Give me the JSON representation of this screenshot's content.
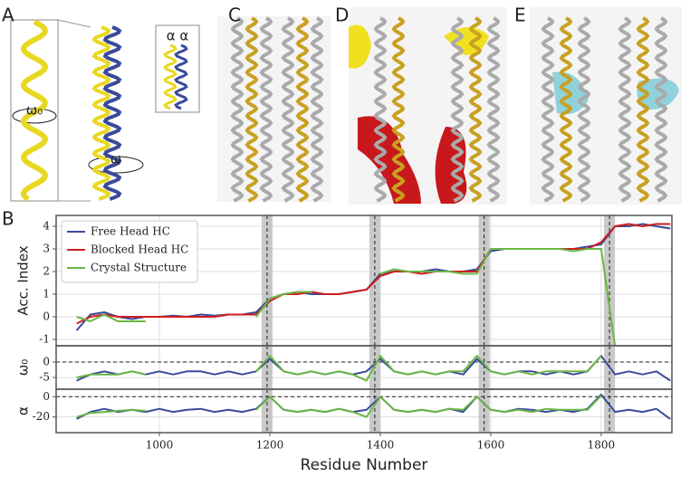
{
  "figure_labels": [
    "A",
    "C",
    "D",
    "E",
    "B"
  ],
  "panel_a_labels": [
    "ω₀",
    "ω",
    "α α"
  ],
  "chart_data": [
    {
      "type": "line",
      "ylabel": "Acc. Index",
      "legend": "upper left",
      "grid": true,
      "xlim": [
        813,
        1928
      ],
      "ylim": [
        -1.28,
        4.48
      ],
      "yticks": [
        -1,
        0,
        1,
        2,
        3,
        4
      ],
      "vlines": [
        1195,
        1390,
        1588,
        1815
      ],
      "x": [
        850,
        875,
        900,
        925,
        950,
        975,
        1000,
        1025,
        1050,
        1075,
        1100,
        1125,
        1150,
        1175,
        1200,
        1225,
        1250,
        1275,
        1300,
        1325,
        1350,
        1375,
        1400,
        1425,
        1450,
        1475,
        1500,
        1525,
        1550,
        1575,
        1600,
        1625,
        1650,
        1675,
        1700,
        1725,
        1750,
        1775,
        1800,
        1825,
        1850,
        1875,
        1900,
        1925
      ],
      "series": [
        {
          "name": "Free Head HC",
          "color": "#3a4a9a",
          "values": [
            -0.6,
            0.1,
            0.2,
            0.0,
            -0.1,
            0.0,
            0.0,
            0.05,
            0.0,
            0.1,
            0.05,
            0.1,
            0.1,
            0.2,
            0.8,
            1.0,
            1.1,
            1.0,
            1.0,
            1.0,
            1.1,
            1.2,
            1.9,
            2.0,
            2.0,
            2.0,
            2.1,
            2.0,
            2.0,
            2.1,
            2.9,
            3.0,
            3.0,
            3.0,
            3.0,
            3.0,
            3.0,
            3.1,
            3.2,
            4.0,
            4.0,
            4.1,
            4.0,
            3.9
          ]
        },
        {
          "name": "Blocked Head HC",
          "color": "#d01c1f",
          "values": [
            -0.3,
            0.0,
            0.1,
            0.0,
            0.0,
            0.0,
            0.0,
            0.0,
            0.0,
            0.0,
            0.0,
            0.1,
            0.1,
            0.1,
            0.7,
            1.0,
            1.0,
            1.1,
            1.0,
            1.0,
            1.1,
            1.2,
            1.8,
            2.0,
            2.0,
            1.9,
            2.0,
            2.0,
            2.0,
            2.0,
            3.0,
            3.0,
            3.0,
            3.0,
            3.0,
            3.0,
            3.0,
            3.0,
            3.3,
            4.0,
            4.1,
            4.0,
            4.1,
            4.1
          ]
        },
        {
          "name": "Crystal Structure",
          "color": "#6ab645",
          "values": [
            0.0,
            -0.2,
            0.1,
            -0.2,
            -0.2,
            -0.2,
            null,
            null,
            null,
            null,
            null,
            null,
            null,
            0.0,
            0.8,
            1.0,
            1.1,
            1.1,
            null,
            null,
            null,
            null,
            1.9,
            2.1,
            2.0,
            2.0,
            2.0,
            2.0,
            1.9,
            1.9,
            3.0,
            3.0,
            3.0,
            3.0,
            3.0,
            3.0,
            2.9,
            3.0,
            3.0,
            -1.3,
            null,
            null,
            null,
            null
          ]
        }
      ]
    },
    {
      "type": "line",
      "ylabel": "ω₀",
      "grid": true,
      "hline": 0,
      "xlim": [
        813,
        1928
      ],
      "ylim": [
        -8.8,
        5.3
      ],
      "yticks": [
        0,
        -5
      ],
      "x": [
        850,
        875,
        900,
        925,
        950,
        975,
        1000,
        1025,
        1050,
        1075,
        1100,
        1125,
        1150,
        1175,
        1200,
        1225,
        1250,
        1275,
        1300,
        1325,
        1350,
        1375,
        1400,
        1425,
        1450,
        1475,
        1500,
        1525,
        1550,
        1575,
        1600,
        1625,
        1650,
        1675,
        1700,
        1725,
        1750,
        1775,
        1800,
        1825,
        1850,
        1875,
        1900,
        1925
      ],
      "series": [
        {
          "color": "#3a4a9a",
          "values": [
            -6,
            -4,
            -3,
            -4,
            -3,
            -4,
            -3,
            -4,
            -3,
            -3,
            -4,
            -3,
            -4,
            -3,
            1,
            -3,
            -4,
            -3,
            -4,
            -3,
            -4,
            -3,
            1,
            -3,
            -4,
            -3,
            -4,
            -3,
            -4,
            1,
            -3,
            -4,
            -3,
            -3,
            -4,
            -3,
            -4,
            -3,
            2,
            -4,
            -3,
            -4,
            -3,
            -6
          ]
        },
        {
          "color": "#6ab645",
          "values": [
            -5,
            -4,
            -4,
            -4,
            -3,
            -4,
            null,
            null,
            null,
            null,
            null,
            null,
            null,
            -3,
            2,
            -3,
            -4,
            -3,
            -4,
            -3,
            -4,
            -6,
            2,
            -3,
            -4,
            -3,
            -4,
            -3,
            -3,
            2,
            -3,
            -4,
            -3,
            -4,
            -3,
            -3,
            -3,
            -3,
            2,
            null,
            null,
            null,
            null,
            null
          ]
        }
      ]
    },
    {
      "type": "line",
      "ylabel": "α",
      "xlabel": "Residue Number",
      "grid": true,
      "hline": 0,
      "xlim": [
        813,
        1928
      ],
      "ylim": [
        -35.5,
        7.4
      ],
      "yticks": [
        0,
        -20
      ],
      "xticks": [
        1000,
        1200,
        1400,
        1600,
        1800
      ],
      "x": [
        850,
        875,
        900,
        925,
        950,
        975,
        1000,
        1025,
        1050,
        1075,
        1100,
        1125,
        1150,
        1175,
        1200,
        1225,
        1250,
        1275,
        1300,
        1325,
        1350,
        1375,
        1400,
        1425,
        1450,
        1475,
        1500,
        1525,
        1550,
        1575,
        1600,
        1625,
        1650,
        1675,
        1700,
        1725,
        1750,
        1775,
        1800,
        1825,
        1850,
        1875,
        1900,
        1925
      ],
      "series": [
        {
          "color": "#3a4a9a",
          "values": [
            -22,
            -15,
            -12,
            -15,
            -13,
            -15,
            -12,
            -15,
            -13,
            -12,
            -15,
            -13,
            -15,
            -12,
            0,
            -13,
            -15,
            -13,
            -15,
            -12,
            -15,
            -13,
            0,
            -13,
            -15,
            -13,
            -15,
            -12,
            -15,
            0,
            -13,
            -15,
            -12,
            -13,
            -15,
            -13,
            -15,
            -12,
            2,
            -15,
            -13,
            -15,
            -12,
            -22
          ]
        },
        {
          "color": "#6ab645",
          "values": [
            -20,
            -16,
            -15,
            -14,
            -13,
            -14,
            null,
            null,
            null,
            null,
            null,
            null,
            null,
            -13,
            0,
            -13,
            -15,
            -13,
            -15,
            -12,
            -15,
            -20,
            0,
            -13,
            -15,
            -13,
            -15,
            -12,
            -13,
            0,
            -13,
            -15,
            -13,
            -15,
            -12,
            -13,
            -13,
            -13,
            1,
            null,
            null,
            null,
            null,
            null
          ]
        }
      ]
    }
  ]
}
